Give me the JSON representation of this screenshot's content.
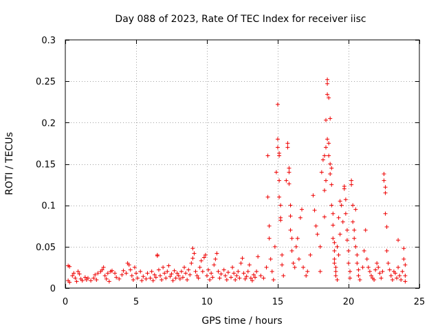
{
  "chart_data": {
    "type": "scatter",
    "title": "Day 088 of 2023, Rate Of TEC Index for receiver iisc",
    "xlabel": "GPS time / hours",
    "ylabel": "ROTI / TECUs",
    "xlim": [
      0,
      25
    ],
    "ylim": [
      0,
      0.3
    ],
    "xticks": [
      0,
      5,
      10,
      15,
      20,
      25
    ],
    "yticks": [
      0,
      0.05,
      0.1,
      0.15,
      0.2,
      0.25,
      0.3
    ],
    "xtick_labels": [
      "0",
      "5",
      "10",
      "15",
      "20",
      "25"
    ],
    "ytick_labels": [
      "0",
      "0.05",
      "0.1",
      "0.15",
      "0.2",
      "0.25",
      "0.3"
    ],
    "grid": true,
    "marker": "+",
    "color": "#ee0000",
    "series": [
      {
        "name": "ROTI",
        "points": [
          [
            0.2,
            0.027
          ],
          [
            0.3,
            0.026
          ],
          [
            0.2,
            0.009
          ],
          [
            0.3,
            0.007
          ],
          [
            0.5,
            0.015
          ],
          [
            0.6,
            0.018
          ],
          [
            0.7,
            0.012
          ],
          [
            0.8,
            0.008
          ],
          [
            0.9,
            0.02
          ],
          [
            1.0,
            0.017
          ],
          [
            1.1,
            0.011
          ],
          [
            1.2,
            0.009
          ],
          [
            1.4,
            0.013
          ],
          [
            1.5,
            0.01
          ],
          [
            1.6,
            0.012
          ],
          [
            1.8,
            0.009
          ],
          [
            2.0,
            0.012
          ],
          [
            2.1,
            0.016
          ],
          [
            2.2,
            0.01
          ],
          [
            2.3,
            0.018
          ],
          [
            2.5,
            0.02
          ],
          [
            2.6,
            0.022
          ],
          [
            2.7,
            0.025
          ],
          [
            2.8,
            0.015
          ],
          [
            2.9,
            0.011
          ],
          [
            3.0,
            0.018
          ],
          [
            3.1,
            0.008
          ],
          [
            3.2,
            0.02
          ],
          [
            3.3,
            0.021
          ],
          [
            3.5,
            0.018
          ],
          [
            3.6,
            0.013
          ],
          [
            3.8,
            0.011
          ],
          [
            4.0,
            0.016
          ],
          [
            4.1,
            0.021
          ],
          [
            4.3,
            0.018
          ],
          [
            4.4,
            0.03
          ],
          [
            4.5,
            0.028
          ],
          [
            4.6,
            0.022
          ],
          [
            4.7,
            0.015
          ],
          [
            4.8,
            0.01
          ],
          [
            4.9,
            0.025
          ],
          [
            5.0,
            0.018
          ],
          [
            5.1,
            0.012
          ],
          [
            5.3,
            0.02
          ],
          [
            5.4,
            0.009
          ],
          [
            5.5,
            0.014
          ],
          [
            5.7,
            0.011
          ],
          [
            5.8,
            0.018
          ],
          [
            6.0,
            0.012
          ],
          [
            6.1,
            0.02
          ],
          [
            6.2,
            0.009
          ],
          [
            6.3,
            0.016
          ],
          [
            6.4,
            0.013
          ],
          [
            6.5,
            0.04
          ],
          [
            6.5,
            0.039
          ],
          [
            6.6,
            0.022
          ],
          [
            6.7,
            0.015
          ],
          [
            6.8,
            0.01
          ],
          [
            6.9,
            0.025
          ],
          [
            7.0,
            0.018
          ],
          [
            7.1,
            0.012
          ],
          [
            7.2,
            0.02
          ],
          [
            7.3,
            0.027
          ],
          [
            7.4,
            0.014
          ],
          [
            7.5,
            0.017
          ],
          [
            7.6,
            0.009
          ],
          [
            7.7,
            0.021
          ],
          [
            7.8,
            0.012
          ],
          [
            7.9,
            0.018
          ],
          [
            8.0,
            0.015
          ],
          [
            8.1,
            0.011
          ],
          [
            8.2,
            0.02
          ],
          [
            8.3,
            0.013
          ],
          [
            8.4,
            0.025
          ],
          [
            8.5,
            0.018
          ],
          [
            8.6,
            0.01
          ],
          [
            8.7,
            0.022
          ],
          [
            8.8,
            0.016
          ],
          [
            8.9,
            0.03
          ],
          [
            9.0,
            0.036
          ],
          [
            9.0,
            0.048
          ],
          [
            9.1,
            0.042
          ],
          [
            9.2,
            0.02
          ],
          [
            9.3,
            0.015
          ],
          [
            9.4,
            0.012
          ],
          [
            9.5,
            0.025
          ],
          [
            9.6,
            0.033
          ],
          [
            9.7,
            0.02
          ],
          [
            9.8,
            0.037
          ],
          [
            9.9,
            0.04
          ],
          [
            10.0,
            0.015
          ],
          [
            10.1,
            0.022
          ],
          [
            10.2,
            0.01
          ],
          [
            10.3,
            0.018
          ],
          [
            10.4,
            0.013
          ],
          [
            10.5,
            0.028
          ],
          [
            10.6,
            0.035
          ],
          [
            10.7,
            0.042
          ],
          [
            10.8,
            0.02
          ],
          [
            10.9,
            0.012
          ],
          [
            11.0,
            0.017
          ],
          [
            11.2,
            0.022
          ],
          [
            11.3,
            0.015
          ],
          [
            11.4,
            0.01
          ],
          [
            11.5,
            0.019
          ],
          [
            11.7,
            0.013
          ],
          [
            11.8,
            0.025
          ],
          [
            11.9,
            0.018
          ],
          [
            12.0,
            0.01
          ],
          [
            12.1,
            0.015
          ],
          [
            12.2,
            0.02
          ],
          [
            12.3,
            0.012
          ],
          [
            12.4,
            0.03
          ],
          [
            12.5,
            0.036
          ],
          [
            12.6,
            0.018
          ],
          [
            12.7,
            0.011
          ],
          [
            12.8,
            0.014
          ],
          [
            12.9,
            0.02
          ],
          [
            13.0,
            0.028
          ],
          [
            13.1,
            0.012
          ],
          [
            13.2,
            0.009
          ],
          [
            13.3,
            0.016
          ],
          [
            13.4,
            0.013
          ],
          [
            13.5,
            0.02
          ],
          [
            13.6,
            0.038
          ],
          [
            13.8,
            0.015
          ],
          [
            14.0,
            0.012
          ],
          [
            14.2,
            0.025
          ],
          [
            14.3,
            0.11
          ],
          [
            14.3,
            0.16
          ],
          [
            14.4,
            0.075
          ],
          [
            14.4,
            0.06
          ],
          [
            14.5,
            0.035
          ],
          [
            14.6,
            0.02
          ],
          [
            14.7,
            0.01
          ],
          [
            14.8,
            0.05
          ],
          [
            14.9,
            0.14
          ],
          [
            15.0,
            0.17
          ],
          [
            15.0,
            0.222
          ],
          [
            15.0,
            0.18
          ],
          [
            15.1,
            0.163
          ],
          [
            15.1,
            0.16
          ],
          [
            15.1,
            0.13
          ],
          [
            15.1,
            0.11
          ],
          [
            15.2,
            0.082
          ],
          [
            15.2,
            0.1
          ],
          [
            15.2,
            0.085
          ],
          [
            15.3,
            0.04
          ],
          [
            15.3,
            0.028
          ],
          [
            15.4,
            0.015
          ],
          [
            15.6,
            0.13
          ],
          [
            15.7,
            0.17
          ],
          [
            15.7,
            0.175
          ],
          [
            15.8,
            0.14
          ],
          [
            15.8,
            0.145
          ],
          [
            15.8,
            0.126
          ],
          [
            15.9,
            0.1
          ],
          [
            15.9,
            0.087
          ],
          [
            15.9,
            0.07
          ],
          [
            16.0,
            0.06
          ],
          [
            16.0,
            0.045
          ],
          [
            16.1,
            0.03
          ],
          [
            16.2,
            0.025
          ],
          [
            16.3,
            0.05
          ],
          [
            16.4,
            0.06
          ],
          [
            16.5,
            0.035
          ],
          [
            16.6,
            0.085
          ],
          [
            16.7,
            0.095
          ],
          [
            16.8,
            0.025
          ],
          [
            17.0,
            0.015
          ],
          [
            17.1,
            0.02
          ],
          [
            17.3,
            0.04
          ],
          [
            17.5,
            0.112
          ],
          [
            17.6,
            0.094
          ],
          [
            17.7,
            0.075
          ],
          [
            17.8,
            0.065
          ],
          [
            18.0,
            0.05
          ],
          [
            18.0,
            0.02
          ],
          [
            18.1,
            0.14
          ],
          [
            18.2,
            0.155
          ],
          [
            18.3,
            0.16
          ],
          [
            18.3,
            0.118
          ],
          [
            18.3,
            0.086
          ],
          [
            18.4,
            0.17
          ],
          [
            18.4,
            0.203
          ],
          [
            18.4,
            0.13
          ],
          [
            18.5,
            0.234
          ],
          [
            18.5,
            0.247
          ],
          [
            18.5,
            0.252
          ],
          [
            18.6,
            0.23
          ],
          [
            18.5,
            0.18
          ],
          [
            18.6,
            0.175
          ],
          [
            18.6,
            0.16
          ],
          [
            18.7,
            0.205
          ],
          [
            18.7,
            0.15
          ],
          [
            18.7,
            0.138
          ],
          [
            18.8,
            0.145
          ],
          [
            18.8,
            0.125
          ],
          [
            18.8,
            0.1
          ],
          [
            18.9,
            0.09
          ],
          [
            18.9,
            0.076
          ],
          [
            18.9,
            0.06
          ],
          [
            19.0,
            0.055
          ],
          [
            19.0,
            0.045
          ],
          [
            19.0,
            0.035
          ],
          [
            19.0,
            0.03
          ],
          [
            19.1,
            0.025
          ],
          [
            19.1,
            0.02
          ],
          [
            19.1,
            0.015
          ],
          [
            19.2,
            0.01
          ],
          [
            19.2,
            0.05
          ],
          [
            19.3,
            0.04
          ],
          [
            19.3,
            0.085
          ],
          [
            19.4,
            0.065
          ],
          [
            19.4,
            0.105
          ],
          [
            19.5,
            0.1
          ],
          [
            19.6,
            0.08
          ],
          [
            19.7,
            0.123
          ],
          [
            19.7,
            0.12
          ],
          [
            19.8,
            0.107
          ],
          [
            19.8,
            0.09
          ],
          [
            19.9,
            0.07
          ],
          [
            19.9,
            0.058
          ],
          [
            20.0,
            0.045
          ],
          [
            20.0,
            0.03
          ],
          [
            20.1,
            0.02
          ],
          [
            20.1,
            0.012
          ],
          [
            20.2,
            0.13
          ],
          [
            20.2,
            0.125
          ],
          [
            20.3,
            0.1
          ],
          [
            20.3,
            0.08
          ],
          [
            20.4,
            0.07
          ],
          [
            20.4,
            0.06
          ],
          [
            20.5,
            0.095
          ],
          [
            20.5,
            0.05
          ],
          [
            20.6,
            0.04
          ],
          [
            20.6,
            0.03
          ],
          [
            20.7,
            0.022
          ],
          [
            20.7,
            0.015
          ],
          [
            20.8,
            0.01
          ],
          [
            21.0,
            0.025
          ],
          [
            21.1,
            0.045
          ],
          [
            21.2,
            0.07
          ],
          [
            21.3,
            0.035
          ],
          [
            21.4,
            0.025
          ],
          [
            21.5,
            0.02
          ],
          [
            21.6,
            0.015
          ],
          [
            21.7,
            0.012
          ],
          [
            21.8,
            0.01
          ],
          [
            21.9,
            0.022
          ],
          [
            22.0,
            0.03
          ],
          [
            22.1,
            0.025
          ],
          [
            22.2,
            0.018
          ],
          [
            22.3,
            0.012
          ],
          [
            22.4,
            0.02
          ],
          [
            22.5,
            0.138
          ],
          [
            22.5,
            0.13
          ],
          [
            22.6,
            0.122
          ],
          [
            22.6,
            0.115
          ],
          [
            22.6,
            0.09
          ],
          [
            22.7,
            0.074
          ],
          [
            22.7,
            0.045
          ],
          [
            22.8,
            0.03
          ],
          [
            22.9,
            0.022
          ],
          [
            23.0,
            0.015
          ],
          [
            23.1,
            0.01
          ],
          [
            23.2,
            0.02
          ],
          [
            23.3,
            0.018
          ],
          [
            23.4,
            0.012
          ],
          [
            23.5,
            0.058
          ],
          [
            23.5,
            0.025
          ],
          [
            23.6,
            0.015
          ],
          [
            23.7,
            0.01
          ],
          [
            23.8,
            0.02
          ],
          [
            23.9,
            0.048
          ],
          [
            23.9,
            0.035
          ],
          [
            24.0,
            0.028
          ],
          [
            24.0,
            0.015
          ],
          [
            24.0,
            0.008
          ]
        ]
      }
    ]
  }
}
